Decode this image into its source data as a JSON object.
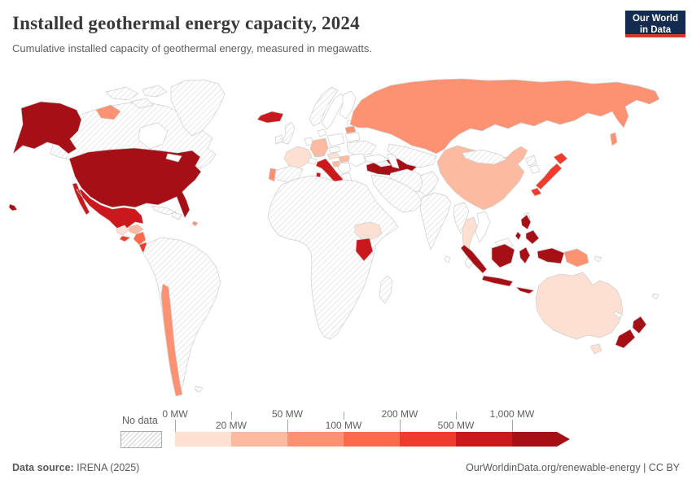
{
  "header": {
    "title": "Installed geothermal energy capacity, 2024",
    "subtitle": "Cumulative installed capacity of geothermal energy, measured in megawatts.",
    "logo": {
      "line1": "Our World",
      "line2": "in Data",
      "bg_color": "#122B4E",
      "accent_color": "#D7362A"
    }
  },
  "legend": {
    "no_data_label": "No data",
    "ticks": [
      {
        "label": "0 MW",
        "row": "a"
      },
      {
        "label": "20 MW",
        "row": "b"
      },
      {
        "label": "50 MW",
        "row": "a"
      },
      {
        "label": "100 MW",
        "row": "b"
      },
      {
        "label": "200 MW",
        "row": "a"
      },
      {
        "label": "500 MW",
        "row": "b"
      },
      {
        "label": "1,000 MW",
        "row": "a"
      }
    ],
    "bins": [
      {
        "range": "0-20 MW",
        "color": "#fee0d2"
      },
      {
        "range": "20-50 MW",
        "color": "#fcbba1"
      },
      {
        "range": "50-100 MW",
        "color": "#fc9272"
      },
      {
        "range": "100-200 MW",
        "color": "#fb6a4a"
      },
      {
        "range": "200-500 MW",
        "color": "#ef3b2c"
      },
      {
        "range": "500-1,000 MW",
        "color": "#cb181d"
      },
      {
        "range": "1,000+ MW",
        "color": "#a50f15"
      }
    ]
  },
  "map": {
    "zero_color": "#ffffff",
    "border_color": "#cdcdcd",
    "hatch_line_color": "#d4d4d4",
    "countries": {
      "canada": "no-data",
      "arctic-islands": "no-data",
      "greenland": "no-data",
      "united-states": 6,
      "russia": 2,
      "mexico": 5,
      "guatemala": 0,
      "honduras": 1,
      "el-salvador": 4,
      "nicaragua": 3,
      "costa-rica": 4,
      "panama": "zero",
      "cuba": "no-data",
      "hispaniola": "no-data",
      "guadeloupe": 2,
      "south-america": "no-data",
      "chile": 2,
      "falkland-islands": "no-data",
      "iceland": 5,
      "united-kingdom": "no-data",
      "ireland": "no-data",
      "norway": "no-data",
      "sweden": "zero",
      "finland": "zero",
      "denmark": "zero",
      "benelux": "zero",
      "estonia-latvia": "zero",
      "lithuania": 2,
      "poland": "zero",
      "belarus": "zero",
      "ukraine": "no-data",
      "germany": 1,
      "france": 0,
      "spain": "no-data",
      "portugal": 2,
      "italy": 5,
      "switzerland": "zero",
      "austria": 0,
      "czechia": "zero",
      "hungary": 1,
      "croatia": 1,
      "balkans": "zero",
      "greece": "zero",
      "romania-bulgaria": "zero",
      "turkey": 6,
      "caucasus": "no-data",
      "middle-east": "no-data",
      "iran": "no-data",
      "afghanistan-pakistan": "no-data",
      "central-asia": "no-data",
      "africa": "no-data",
      "ethiopia": 0,
      "kenya": 5,
      "madagascar": "no-data",
      "mongolia": "no-data",
      "china": 1,
      "india": "no-data",
      "sri-lanka": "zero",
      "myanmar": "no-data",
      "thailand": 0,
      "vietnam": "zero",
      "malaysia": "zero",
      "north-korea": "no-data",
      "south-korea": "zero",
      "japan": 4,
      "taiwan": "no-data",
      "philippines": 6,
      "indonesia": 6,
      "papua-new-guinea": 2,
      "solomon-islands": "no-data",
      "australia": 0,
      "new-zealand": 6,
      "fiji": "no-data",
      "new-caledonia": "no-data"
    }
  },
  "footer": {
    "source_label": "Data source:",
    "source_value": "IRENA (2025)",
    "right": "OurWorldinData.org/renewable-energy | CC BY"
  },
  "chart_data": {
    "type": "choropleth",
    "title": "Installed geothermal energy capacity, 2024",
    "subtitle": "Cumulative installed capacity of geothermal energy, measured in megawatts.",
    "unit": "MW",
    "year": 2024,
    "legend_bins": [
      "0-20 MW",
      "20-50 MW",
      "50-100 MW",
      "100-200 MW",
      "200-500 MW",
      "500-1,000 MW",
      "1,000+ MW",
      "No data"
    ],
    "countries": {
      "United States": "1,000+ MW",
      "Turkey": "1,000+ MW",
      "Indonesia": "1,000+ MW",
      "Philippines": "1,000+ MW",
      "New Zealand": "1,000+ MW",
      "Mexico": "500-1,000 MW",
      "Italy": "500-1,000 MW",
      "Iceland": "500-1,000 MW",
      "Kenya": "500-1,000 MW",
      "Japan": "200-500 MW",
      "Costa Rica": "200-500 MW",
      "El Salvador": "200-500 MW",
      "Nicaragua": "100-200 MW",
      "Russia": "50-100 MW",
      "Chile": "50-100 MW",
      "Papua New Guinea": "50-100 MW",
      "Portugal": "50-100 MW",
      "Lithuania": "50-100 MW",
      "Guadeloupe (France)": "50-100 MW",
      "China": "20-50 MW",
      "Germany": "20-50 MW",
      "Honduras": "20-50 MW",
      "Hungary": "20-50 MW",
      "Croatia": "20-50 MW",
      "France": "0-20 MW",
      "Australia": "0-20 MW",
      "Ethiopia": "0-20 MW",
      "Thailand": "0-20 MW",
      "Austria": "0-20 MW",
      "Guatemala": "0-20 MW",
      "Canada": "No data",
      "Greenland": "No data",
      "Brazil and most of South America": "No data",
      "Most of Africa": "No data",
      "India": "No data",
      "Iran": "No data",
      "Middle East": "No data",
      "Central Asia": "No data",
      "Mongolia": "No data",
      "United Kingdom": "No data",
      "Norway": "No data",
      "Spain": "No data",
      "Ukraine": "No data"
    }
  }
}
